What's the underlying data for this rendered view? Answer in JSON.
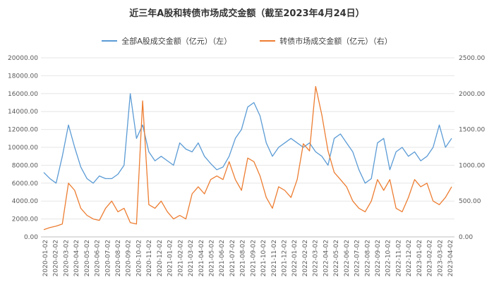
{
  "chart_data": {
    "type": "line",
    "title": "近三年A股和转债市场成交金额（截至2023年4月24日）",
    "x_ticks": [
      "2020-01-02",
      "2020-02-02",
      "2020-03-02",
      "2020-04-02",
      "2020-05-02",
      "2020-06-02",
      "2020-07-02",
      "2020-08-02",
      "2020-09-02",
      "2020-10-02",
      "2020-11-02",
      "2020-12-02",
      "2021-01-02",
      "2021-02-02",
      "2021-03-02",
      "2021-04-02",
      "2021-05-02",
      "2021-06-02",
      "2021-07-02",
      "2021-08-02",
      "2021-09-02",
      "2021-10-02",
      "2021-11-02",
      "2021-12-02",
      "2022-01-02",
      "2022-02-02",
      "2022-03-02",
      "2022-04-02",
      "2022-05-02",
      "2022-06-02",
      "2022-07-02",
      "2022-08-02",
      "2022-09-02",
      "2022-10-02",
      "2022-11-02",
      "2022-12-02",
      "2023-01-02",
      "2023-02-02",
      "2023-03-02",
      "2023-04-02"
    ],
    "y_left": {
      "ylim": [
        0,
        20000
      ],
      "ticks": [
        "0.00",
        "2000.00",
        "4000.00",
        "6000.00",
        "8000.00",
        "10000.00",
        "12000.00",
        "14000.00",
        "16000.00",
        "18000.00",
        "20000.00"
      ]
    },
    "y_right": {
      "ylim": [
        0,
        2500
      ],
      "ticks": [
        "0.00",
        "500.00",
        "1000.00",
        "1500.00",
        "2000.00",
        "2500.00"
      ]
    },
    "grid": true,
    "legend_position": "top-center",
    "series": [
      {
        "name": "全部A股成交金额（亿元）（左）",
        "axis": "left",
        "color": "#5B9BD5",
        "values": [
          7200,
          6500,
          6000,
          9000,
          12500,
          10000,
          7800,
          6500,
          6000,
          6800,
          6500,
          6500,
          7000,
          8000,
          16000,
          11000,
          12500,
          9500,
          8500,
          9000,
          8500,
          8000,
          10500,
          9800,
          9500,
          10500,
          9000,
          8200,
          7500,
          7800,
          9000,
          11000,
          12000,
          14500,
          15000,
          13500,
          10500,
          9000,
          10000,
          10500,
          11000,
          10500,
          10000,
          10500,
          9500,
          9000,
          8000,
          11000,
          11500,
          10500,
          9500,
          7500,
          6000,
          6500,
          10500,
          11000,
          7500,
          9500,
          10000,
          9000,
          9500,
          8500,
          9000,
          10000,
          12500,
          10000,
          11000
        ]
      },
      {
        "name": "转债市场成交金额（亿元）（右）",
        "axis": "right",
        "color": "#ED7D31",
        "values": [
          100,
          130,
          150,
          180,
          750,
          650,
          400,
          300,
          250,
          230,
          400,
          500,
          350,
          400,
          200,
          180,
          1900,
          450,
          400,
          500,
          350,
          250,
          300,
          250,
          600,
          700,
          600,
          800,
          850,
          800,
          1050,
          800,
          650,
          1100,
          1050,
          850,
          550,
          400,
          700,
          650,
          550,
          800,
          1300,
          1200,
          2100,
          1700,
          1200,
          900,
          800,
          700,
          500,
          400,
          350,
          500,
          800,
          650,
          800,
          400,
          350,
          550,
          800,
          700,
          750,
          500,
          450,
          550,
          700
        ]
      }
    ]
  }
}
